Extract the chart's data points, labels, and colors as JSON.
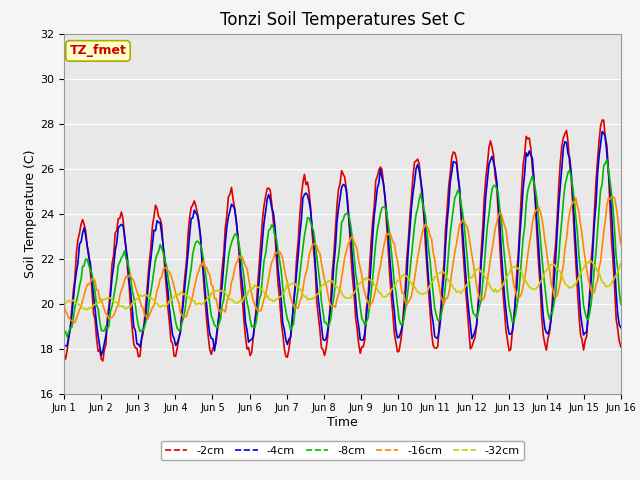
{
  "title": "Tonzi Soil Temperatures Set C",
  "xlabel": "Time",
  "ylabel": "Soil Temperature (C)",
  "ylim": [
    16,
    32
  ],
  "yticks": [
    16,
    18,
    20,
    22,
    24,
    26,
    28,
    30,
    32
  ],
  "xtick_labels": [
    "Jun 1",
    "Jun 2",
    "Jun 3",
    "Jun 4",
    "Jun 5",
    "Jun 6",
    "Jun 7",
    "Jun 8",
    "Jun 9",
    "Jun 10",
    "Jun 11",
    "Jun 12",
    "Jun 13",
    "Jun 14",
    "Jun 15",
    "Jun 16"
  ],
  "annotation_text": "TZ_fmet",
  "annotation_bg": "#ffffcc",
  "annotation_border": "#aaaa00",
  "annotation_fg": "#cc0000",
  "colors": {
    "-2cm": "#dd0000",
    "-4cm": "#0000dd",
    "-8cm": "#00bb00",
    "-16cm": "#ff8800",
    "-32cm": "#cccc00"
  },
  "line_width": 1.2,
  "plot_bg_color": "#e8e8e8",
  "fig_bg_color": "#f5f5f5",
  "grid_color": "#ffffff",
  "title_fontsize": 12,
  "label_fontsize": 9,
  "tick_fontsize": 8
}
